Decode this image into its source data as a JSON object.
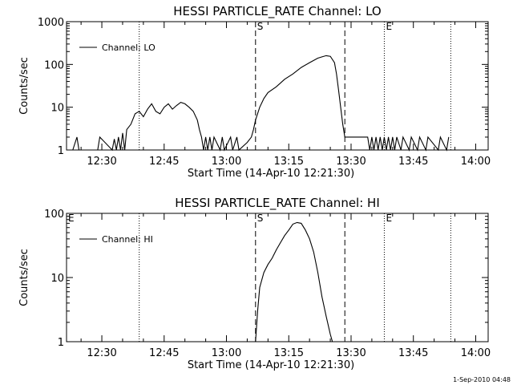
{
  "footer": {
    "timestamp": "1-Sep-2010 04:48"
  },
  "chart_data": [
    {
      "type": "line",
      "title": "HESSI PARTICLE_RATE Channel: LO",
      "xlabel": "Start Time (14-Apr-10 12:21:30)",
      "ylabel": "Counts/sec",
      "yscale": "log",
      "ylim": [
        1,
        1000
      ],
      "xlim": [
        "12:21:30",
        "14:03:00"
      ],
      "x_ticks": [
        "12:30",
        "12:45",
        "13:00",
        "13:15",
        "13:30",
        "13:45",
        "14:00"
      ],
      "y_ticks": [
        "1",
        "10",
        "100",
        "1000"
      ],
      "legend": {
        "position": "top-left",
        "entries": [
          "Channel: LO"
        ]
      },
      "markers": [
        {
          "time": "12:39:00",
          "style": "dotted",
          "label": ""
        },
        {
          "time": "13:07:00",
          "style": "dashed",
          "label": "S"
        },
        {
          "time": "13:28:30",
          "style": "dashed",
          "label": ""
        },
        {
          "time": "13:38:00",
          "style": "dotted",
          "label": "E"
        },
        {
          "time": "13:54:00",
          "style": "dotted",
          "label": ""
        }
      ],
      "series": [
        {
          "name": "Channel: LO",
          "x": [
            "12:23:00",
            "12:24:00",
            "12:24:30",
            "12:29:00",
            "12:29:30",
            "12:32:30",
            "12:33:00",
            "12:33:30",
            "12:34:00",
            "12:34:30",
            "12:35:00",
            "12:35:30",
            "12:36:00",
            "12:37:00",
            "12:38:00",
            "12:39:00",
            "12:40:00",
            "12:41:00",
            "12:42:00",
            "12:43:00",
            "12:44:00",
            "12:45:00",
            "12:46:00",
            "12:47:00",
            "12:48:00",
            "12:49:00",
            "12:50:00",
            "12:51:00",
            "12:52:00",
            "12:53:00",
            "12:53:30",
            "12:54:00",
            "12:54:30",
            "12:55:00",
            "12:55:30",
            "12:56:00",
            "12:56:30",
            "12:57:00",
            "12:58:30",
            "12:59:00",
            "12:59:30",
            "13:01:00",
            "13:01:30",
            "13:02:30",
            "13:03:00",
            "13:05:00",
            "13:06:00",
            "13:06:30",
            "13:07:00",
            "13:08:00",
            "13:09:00",
            "13:10:00",
            "13:12:00",
            "13:14:00",
            "13:16:00",
            "13:18:00",
            "13:20:00",
            "13:22:00",
            "13:23:00",
            "13:24:00",
            "13:25:00",
            "13:26:00",
            "13:26:30",
            "13:27:00",
            "13:27:30",
            "13:28:00",
            "13:28:30",
            "13:29:00",
            "13:30:00",
            "13:32:00",
            "13:33:00",
            "13:33:30",
            "13:34:00",
            "13:34:30",
            "13:35:00",
            "13:35:30",
            "13:36:00",
            "13:36:30",
            "13:37:00",
            "13:37:30",
            "13:38:00",
            "13:38:30",
            "13:39:00",
            "13:39:30",
            "13:40:00",
            "13:40:30",
            "13:41:00",
            "13:42:00",
            "13:42:30",
            "13:44:00",
            "13:44:30",
            "13:46:00",
            "13:46:30",
            "13:48:00",
            "13:48:30",
            "13:51:00",
            "13:51:30",
            "13:53:00",
            "13:53:30"
          ],
          "y": [
            1,
            2,
            1,
            1,
            2,
            1,
            1.8,
            1,
            2,
            1,
            2.5,
            1,
            3,
            4,
            7,
            8,
            6,
            9,
            12,
            8,
            7,
            10,
            12,
            9,
            11,
            13,
            12,
            10,
            8,
            5,
            3,
            2,
            1,
            2,
            1,
            2,
            1,
            2,
            1,
            2,
            1,
            2,
            1,
            2,
            1,
            1.5,
            2,
            3,
            5,
            10,
            16,
            22,
            30,
            45,
            60,
            85,
            110,
            140,
            150,
            160,
            155,
            110,
            60,
            25,
            10,
            4,
            2,
            2,
            2,
            2,
            2,
            2,
            2,
            1,
            2,
            1,
            2,
            1,
            2,
            1,
            2,
            1,
            2,
            1,
            2,
            1,
            2,
            1,
            2,
            1,
            2,
            1,
            2,
            1,
            2,
            1,
            2,
            1,
            2
          ]
        }
      ]
    },
    {
      "type": "line",
      "title": "HESSI PARTICLE_RATE Channel: HI",
      "xlabel": "Start Time (14-Apr-10 12:21:30)",
      "ylabel": "Counts/sec",
      "yscale": "log",
      "ylim": [
        1,
        100
      ],
      "xlim": [
        "12:21:30",
        "14:03:00"
      ],
      "x_ticks": [
        "12:30",
        "12:45",
        "13:00",
        "13:15",
        "13:30",
        "13:45",
        "14:00"
      ],
      "y_ticks": [
        "1",
        "10",
        "100"
      ],
      "legend": {
        "position": "top-left",
        "entries": [
          "Channel: HI"
        ]
      },
      "markers": [
        {
          "time": "12:21:30",
          "style": "none",
          "label": "E"
        },
        {
          "time": "12:39:00",
          "style": "dotted",
          "label": ""
        },
        {
          "time": "13:07:00",
          "style": "dashed",
          "label": "S"
        },
        {
          "time": "13:28:30",
          "style": "dashed",
          "label": ""
        },
        {
          "time": "13:38:00",
          "style": "dotted",
          "label": "E"
        },
        {
          "time": "13:54:00",
          "style": "dotted",
          "label": ""
        }
      ],
      "series": [
        {
          "name": "Channel: HI",
          "x": [
            "13:07:00",
            "13:07:30",
            "13:08:00",
            "13:09:00",
            "13:10:00",
            "13:11:00",
            "13:12:00",
            "13:13:00",
            "13:14:00",
            "13:15:00",
            "13:16:00",
            "13:17:00",
            "13:18:00",
            "13:19:00",
            "13:20:00",
            "13:21:00",
            "13:22:00",
            "13:23:00",
            "13:24:00",
            "13:25:00",
            "13:25:30"
          ],
          "y": [
            1,
            3,
            7,
            12,
            16,
            20,
            27,
            35,
            45,
            55,
            68,
            72,
            70,
            55,
            40,
            25,
            12,
            5,
            2.5,
            1.3,
            1
          ]
        }
      ]
    }
  ]
}
